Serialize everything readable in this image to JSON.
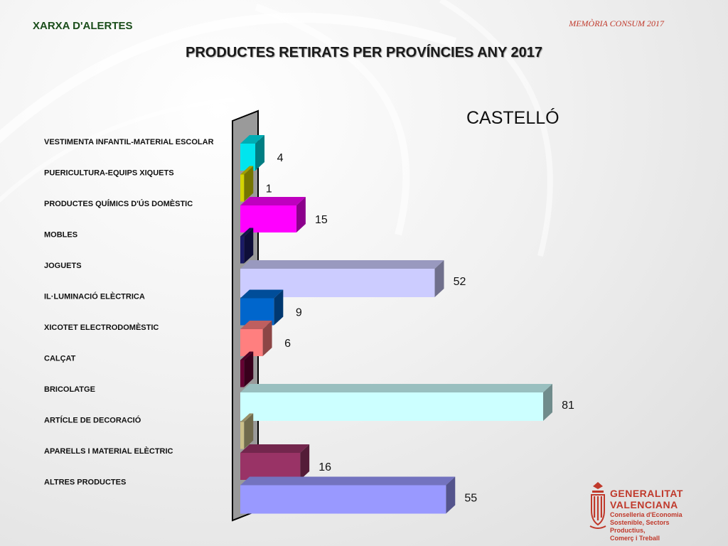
{
  "header": {
    "network": "XARXA D'ALERTES",
    "report": "MEMÒRIA CONSUM 2017"
  },
  "title": "PRODUCTES RETIRATS PER PROVÍNCIES ANY 2017",
  "subtitle": "CASTELLÓ",
  "logo": {
    "name_line1": "GENERALITAT",
    "name_line2": "VALENCIANA",
    "department_line1": "Conselleria d'Economia",
    "department_line2": "Sostenible, Sectors Productius,",
    "department_line3": "Comerç i Treball",
    "color": "#c0392b"
  },
  "chart_data": {
    "type": "bar",
    "orientation": "horizontal",
    "style": "3d",
    "title": "PRODUCTES RETIRATS PER PROVÍNCIES ANY 2017",
    "subtitle": "CASTELLÓ",
    "categories": [
      "VESTIMENTA INFANTIL-MATERIAL ESCOLAR",
      "PUERICULTURA-EQUIPS XIQUETS",
      "PRODUCTES QUÍMICS D'ÚS DOMÈSTIC",
      "MOBLES",
      "JOGUETS",
      "IL·LUMINACIÓ ELÈCTRICA",
      "XICOTET ELECTRODOMÈSTIC",
      "CALÇAT",
      "BRICOLATGE",
      "ARTÍCLE DE DECORACIÓ",
      "APARELLS I MATERIAL ELÈCTRIC",
      "ALTRES PRODUCTES"
    ],
    "values": [
      4,
      1,
      15,
      1,
      52,
      9,
      6,
      1,
      81,
      1,
      16,
      55
    ],
    "value_labels": [
      "4",
      "1",
      "15",
      "",
      "52",
      "9",
      "6",
      "",
      "81",
      "",
      "16",
      "55"
    ],
    "colors": [
      "#00e5ee",
      "#d4d400",
      "#ff00ff",
      "#1a1a66",
      "#ccccff",
      "#0066cc",
      "#ff7f7f",
      "#660033",
      "#ccffff",
      "#ccc08a",
      "#993366",
      "#9999ff"
    ],
    "xlim": [
      0,
      81
    ],
    "grid": false,
    "legend": "none"
  }
}
